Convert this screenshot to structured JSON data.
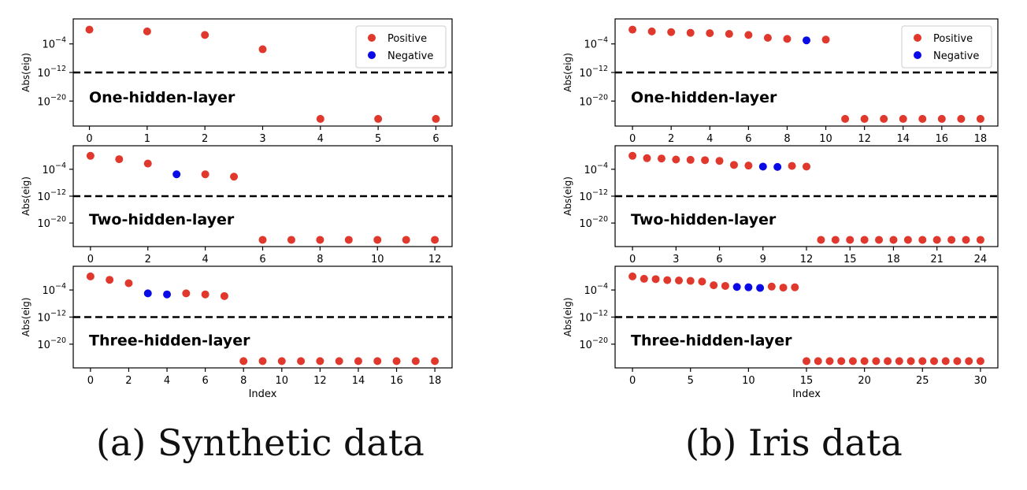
{
  "colors": {
    "positive": "#e0382c",
    "negative": "#0a0ae6",
    "axis": "#000000",
    "threshold": "#000000"
  },
  "captions": [
    "(a) Synthetic data",
    "(b) Iris data"
  ],
  "chart_data": [
    {
      "type": "scatter",
      "panel": "a",
      "title": "One-hidden-layer",
      "ylabel": "Abs(eig)",
      "xlabel": "",
      "xlim": [
        -0.28,
        6.28
      ],
      "xticks": [
        0,
        1,
        2,
        3,
        4,
        5,
        6
      ],
      "ylog": true,
      "ylim_exp": [
        -27,
        3
      ],
      "yticks_exp": [
        -4,
        -12,
        -20
      ],
      "threshold_exp": -12,
      "legend": {
        "placement": "top-right",
        "entries": [
          "Positive",
          "Negative"
        ]
      },
      "points": [
        {
          "x": 0,
          "exp": 0,
          "sign": "positive"
        },
        {
          "x": 1,
          "exp": -0.5,
          "sign": "positive"
        },
        {
          "x": 2,
          "exp": -1.5,
          "sign": "positive"
        },
        {
          "x": 3,
          "exp": -5.5,
          "sign": "positive"
        },
        {
          "x": 4,
          "exp": -25,
          "sign": "positive"
        },
        {
          "x": 5,
          "exp": -25,
          "sign": "positive"
        },
        {
          "x": 6,
          "exp": -25,
          "sign": "positive"
        }
      ]
    },
    {
      "type": "scatter",
      "panel": "a",
      "title": "Two-hidden-layer",
      "ylabel": "Abs(eig)",
      "xlabel": "",
      "xlim": [
        -0.6,
        12.6
      ],
      "xticks": [
        0,
        2,
        4,
        6,
        8,
        10,
        12
      ],
      "ylog": true,
      "ylim_exp": [
        -27,
        3
      ],
      "yticks_exp": [
        -4,
        -12,
        -20
      ],
      "threshold_exp": -12,
      "points": [
        {
          "x": 0,
          "exp": 0,
          "sign": "positive"
        },
        {
          "x": 1,
          "exp": -1,
          "sign": "positive"
        },
        {
          "x": 2,
          "exp": -2.3,
          "sign": "positive"
        },
        {
          "x": 3,
          "exp": -5.5,
          "sign": "negative"
        },
        {
          "x": 4,
          "exp": -5.5,
          "sign": "positive"
        },
        {
          "x": 5,
          "exp": -6.2,
          "sign": "positive"
        },
        {
          "x": 6,
          "exp": -25,
          "sign": "positive"
        },
        {
          "x": 7,
          "exp": -25,
          "sign": "positive"
        },
        {
          "x": 8,
          "exp": -25,
          "sign": "positive"
        },
        {
          "x": 9,
          "exp": -25,
          "sign": "positive"
        },
        {
          "x": 10,
          "exp": -25,
          "sign": "positive"
        },
        {
          "x": 11,
          "exp": -25,
          "sign": "positive"
        },
        {
          "x": 12,
          "exp": -25,
          "sign": "positive"
        }
      ]
    },
    {
      "type": "scatter",
      "panel": "a",
      "title": "Three-hidden-layer",
      "ylabel": "Abs(eig)",
      "xlabel": "Index",
      "xlim": [
        -0.9,
        18.9
      ],
      "xticks": [
        0,
        2,
        4,
        6,
        8,
        10,
        12,
        14,
        16,
        18
      ],
      "ylog": true,
      "ylim_exp": [
        -27,
        3
      ],
      "yticks_exp": [
        -4,
        -12,
        -20
      ],
      "threshold_exp": -12,
      "points": [
        {
          "x": 0,
          "exp": 0,
          "sign": "positive"
        },
        {
          "x": 1,
          "exp": -1,
          "sign": "positive"
        },
        {
          "x": 2,
          "exp": -2,
          "sign": "positive"
        },
        {
          "x": 3,
          "exp": -5,
          "sign": "negative"
        },
        {
          "x": 4,
          "exp": -5.3,
          "sign": "negative"
        },
        {
          "x": 5,
          "exp": -5,
          "sign": "positive"
        },
        {
          "x": 6,
          "exp": -5.3,
          "sign": "positive"
        },
        {
          "x": 7,
          "exp": -5.8,
          "sign": "positive"
        },
        {
          "x": 8,
          "exp": -25,
          "sign": "positive"
        },
        {
          "x": 9,
          "exp": -25,
          "sign": "positive"
        },
        {
          "x": 10,
          "exp": -25,
          "sign": "positive"
        },
        {
          "x": 11,
          "exp": -25,
          "sign": "positive"
        },
        {
          "x": 12,
          "exp": -25,
          "sign": "positive"
        },
        {
          "x": 13,
          "exp": -25,
          "sign": "positive"
        },
        {
          "x": 14,
          "exp": -25,
          "sign": "positive"
        },
        {
          "x": 15,
          "exp": -25,
          "sign": "positive"
        },
        {
          "x": 16,
          "exp": -25,
          "sign": "positive"
        },
        {
          "x": 17,
          "exp": -25,
          "sign": "positive"
        },
        {
          "x": 18,
          "exp": -25,
          "sign": "positive"
        }
      ]
    },
    {
      "type": "scatter",
      "panel": "b",
      "title": "One-hidden-layer",
      "ylabel": "Abs(eig)",
      "xlabel": "",
      "xlim": [
        -0.9,
        18.9
      ],
      "xticks": [
        0,
        2,
        4,
        6,
        8,
        10,
        12,
        14,
        16,
        18
      ],
      "ylog": true,
      "ylim_exp": [
        -27,
        3
      ],
      "yticks_exp": [
        -4,
        -12,
        -20
      ],
      "threshold_exp": -12,
      "legend": {
        "placement": "top-right",
        "entries": [
          "Positive",
          "Negative"
        ]
      },
      "points": [
        {
          "x": 0,
          "exp": 0,
          "sign": "positive"
        },
        {
          "x": 1,
          "exp": -0.5,
          "sign": "positive"
        },
        {
          "x": 2,
          "exp": -0.7,
          "sign": "positive"
        },
        {
          "x": 3,
          "exp": -0.9,
          "sign": "positive"
        },
        {
          "x": 4,
          "exp": -1,
          "sign": "positive"
        },
        {
          "x": 5,
          "exp": -1.2,
          "sign": "positive"
        },
        {
          "x": 6,
          "exp": -1.5,
          "sign": "positive"
        },
        {
          "x": 7,
          "exp": -2.3,
          "sign": "positive"
        },
        {
          "x": 8,
          "exp": -2.6,
          "sign": "positive"
        },
        {
          "x": 9,
          "exp": -3,
          "sign": "negative"
        },
        {
          "x": 10,
          "exp": -2.8,
          "sign": "positive"
        },
        {
          "x": 11,
          "exp": -25,
          "sign": "positive"
        },
        {
          "x": 12,
          "exp": -25,
          "sign": "positive"
        },
        {
          "x": 13,
          "exp": -25,
          "sign": "positive"
        },
        {
          "x": 14,
          "exp": -25,
          "sign": "positive"
        },
        {
          "x": 15,
          "exp": -25,
          "sign": "positive"
        },
        {
          "x": 16,
          "exp": -25,
          "sign": "positive"
        },
        {
          "x": 17,
          "exp": -25,
          "sign": "positive"
        },
        {
          "x": 18,
          "exp": -25,
          "sign": "positive"
        }
      ]
    },
    {
      "type": "scatter",
      "panel": "b",
      "title": "Two-hidden-layer",
      "ylabel": "Abs(eig)",
      "xlabel": "",
      "xlim": [
        -1.2,
        25.2
      ],
      "xticks": [
        0,
        3,
        6,
        9,
        12,
        15,
        18,
        21,
        24
      ],
      "ylog": true,
      "ylim_exp": [
        -27,
        3
      ],
      "yticks_exp": [
        -4,
        -12,
        -20
      ],
      "threshold_exp": -12,
      "points": [
        {
          "x": 0,
          "exp": 0,
          "sign": "positive"
        },
        {
          "x": 1,
          "exp": -0.7,
          "sign": "positive"
        },
        {
          "x": 2,
          "exp": -0.8,
          "sign": "positive"
        },
        {
          "x": 3,
          "exp": -1.1,
          "sign": "positive"
        },
        {
          "x": 4,
          "exp": -1.2,
          "sign": "positive"
        },
        {
          "x": 5,
          "exp": -1.3,
          "sign": "positive"
        },
        {
          "x": 6,
          "exp": -1.5,
          "sign": "positive"
        },
        {
          "x": 7,
          "exp": -2.7,
          "sign": "positive"
        },
        {
          "x": 8,
          "exp": -2.9,
          "sign": "positive"
        },
        {
          "x": 9,
          "exp": -3.2,
          "sign": "negative"
        },
        {
          "x": 10,
          "exp": -3.3,
          "sign": "negative"
        },
        {
          "x": 11,
          "exp": -3,
          "sign": "positive"
        },
        {
          "x": 12,
          "exp": -3.2,
          "sign": "positive"
        },
        {
          "x": 13,
          "exp": -25,
          "sign": "positive"
        },
        {
          "x": 14,
          "exp": -25,
          "sign": "positive"
        },
        {
          "x": 15,
          "exp": -25,
          "sign": "positive"
        },
        {
          "x": 16,
          "exp": -25,
          "sign": "positive"
        },
        {
          "x": 17,
          "exp": -25,
          "sign": "positive"
        },
        {
          "x": 18,
          "exp": -25,
          "sign": "positive"
        },
        {
          "x": 19,
          "exp": -25,
          "sign": "positive"
        },
        {
          "x": 20,
          "exp": -25,
          "sign": "positive"
        },
        {
          "x": 21,
          "exp": -25,
          "sign": "positive"
        },
        {
          "x": 22,
          "exp": -25,
          "sign": "positive"
        },
        {
          "x": 23,
          "exp": -25,
          "sign": "positive"
        },
        {
          "x": 24,
          "exp": -25,
          "sign": "positive"
        }
      ]
    },
    {
      "type": "scatter",
      "panel": "b",
      "title": "Three-hidden-layer",
      "ylabel": "Abs(eig)",
      "xlabel": "Index",
      "xlim": [
        -1.5,
        31.5
      ],
      "xticks": [
        0,
        5,
        10,
        15,
        20,
        25,
        30
      ],
      "ylog": true,
      "ylim_exp": [
        -27,
        3
      ],
      "yticks_exp": [
        -4,
        -12,
        -20
      ],
      "threshold_exp": -12,
      "points": [
        {
          "x": 0,
          "exp": 0,
          "sign": "positive"
        },
        {
          "x": 1,
          "exp": -0.7,
          "sign": "positive"
        },
        {
          "x": 2,
          "exp": -0.8,
          "sign": "positive"
        },
        {
          "x": 3,
          "exp": -1.1,
          "sign": "positive"
        },
        {
          "x": 4,
          "exp": -1.2,
          "sign": "positive"
        },
        {
          "x": 5,
          "exp": -1.3,
          "sign": "positive"
        },
        {
          "x": 6,
          "exp": -1.5,
          "sign": "positive"
        },
        {
          "x": 7,
          "exp": -2.6,
          "sign": "positive"
        },
        {
          "x": 8,
          "exp": -2.8,
          "sign": "positive"
        },
        {
          "x": 9,
          "exp": -3.1,
          "sign": "negative"
        },
        {
          "x": 10,
          "exp": -3.2,
          "sign": "negative"
        },
        {
          "x": 11,
          "exp": -3.4,
          "sign": "negative"
        },
        {
          "x": 12,
          "exp": -3,
          "sign": "positive"
        },
        {
          "x": 13,
          "exp": -3.3,
          "sign": "positive"
        },
        {
          "x": 14,
          "exp": -3.2,
          "sign": "positive"
        },
        {
          "x": 15,
          "exp": -25,
          "sign": "positive"
        },
        {
          "x": 16,
          "exp": -25,
          "sign": "positive"
        },
        {
          "x": 17,
          "exp": -25,
          "sign": "positive"
        },
        {
          "x": 18,
          "exp": -25,
          "sign": "positive"
        },
        {
          "x": 19,
          "exp": -25,
          "sign": "positive"
        },
        {
          "x": 20,
          "exp": -25,
          "sign": "positive"
        },
        {
          "x": 21,
          "exp": -25,
          "sign": "positive"
        },
        {
          "x": 22,
          "exp": -25,
          "sign": "positive"
        },
        {
          "x": 23,
          "exp": -25,
          "sign": "positive"
        },
        {
          "x": 24,
          "exp": -25,
          "sign": "positive"
        },
        {
          "x": 25,
          "exp": -25,
          "sign": "positive"
        },
        {
          "x": 26,
          "exp": -25,
          "sign": "positive"
        },
        {
          "x": 27,
          "exp": -25,
          "sign": "positive"
        },
        {
          "x": 28,
          "exp": -25,
          "sign": "positive"
        },
        {
          "x": 29,
          "exp": -25,
          "sign": "positive"
        },
        {
          "x": 30,
          "exp": -25,
          "sign": "positive"
        }
      ]
    }
  ]
}
